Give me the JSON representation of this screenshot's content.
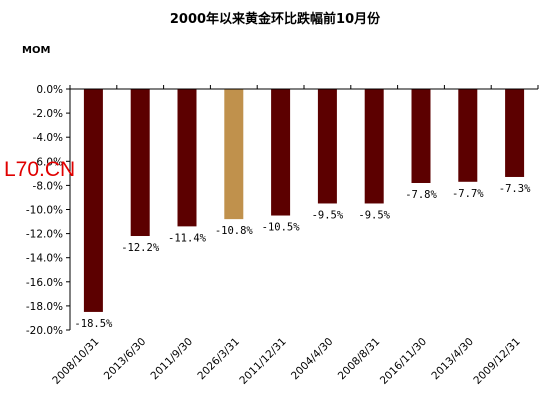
{
  "chart_data": {
    "type": "bar",
    "title": "2000年以来黄金环比跌幅前10月份",
    "ylabel": "MOM",
    "xlabel": "",
    "categories": [
      "2008/10/31",
      "2013/6/30",
      "2011/9/30",
      "2026/3/31",
      "2011/12/31",
      "2004/4/30",
      "2008/8/31",
      "2016/11/30",
      "2013/4/30",
      "2009/12/31"
    ],
    "values": [
      -18.5,
      -12.2,
      -11.4,
      -10.8,
      -10.5,
      -9.5,
      -9.5,
      -7.8,
      -7.7,
      -7.3
    ],
    "data_labels": [
      "-18.5%",
      "-12.2%",
      "-11.4%",
      "-10.8%",
      "-10.5%",
      "-9.5%",
      "-9.5%",
      "-7.8%",
      "-7.7%",
      "-7.3%"
    ],
    "yticks": [
      0,
      -2,
      -4,
      -6,
      -8,
      -10,
      -12,
      -14,
      -16,
      -18,
      -20
    ],
    "ytick_labels": [
      "0.0%",
      "-2.0%",
      "-4.0%",
      "-6.0%",
      "-8.0%",
      "-10.0%",
      "-12.0%",
      "-14.0%",
      "-16.0%",
      "-18.0%",
      "-20.0%"
    ],
    "ylim": [
      -20,
      0
    ],
    "grid": false,
    "colors": {
      "bar": "#5c0000",
      "highlight": "#c0914c",
      "highlight_index": 3
    }
  },
  "watermark": "L70.CN"
}
